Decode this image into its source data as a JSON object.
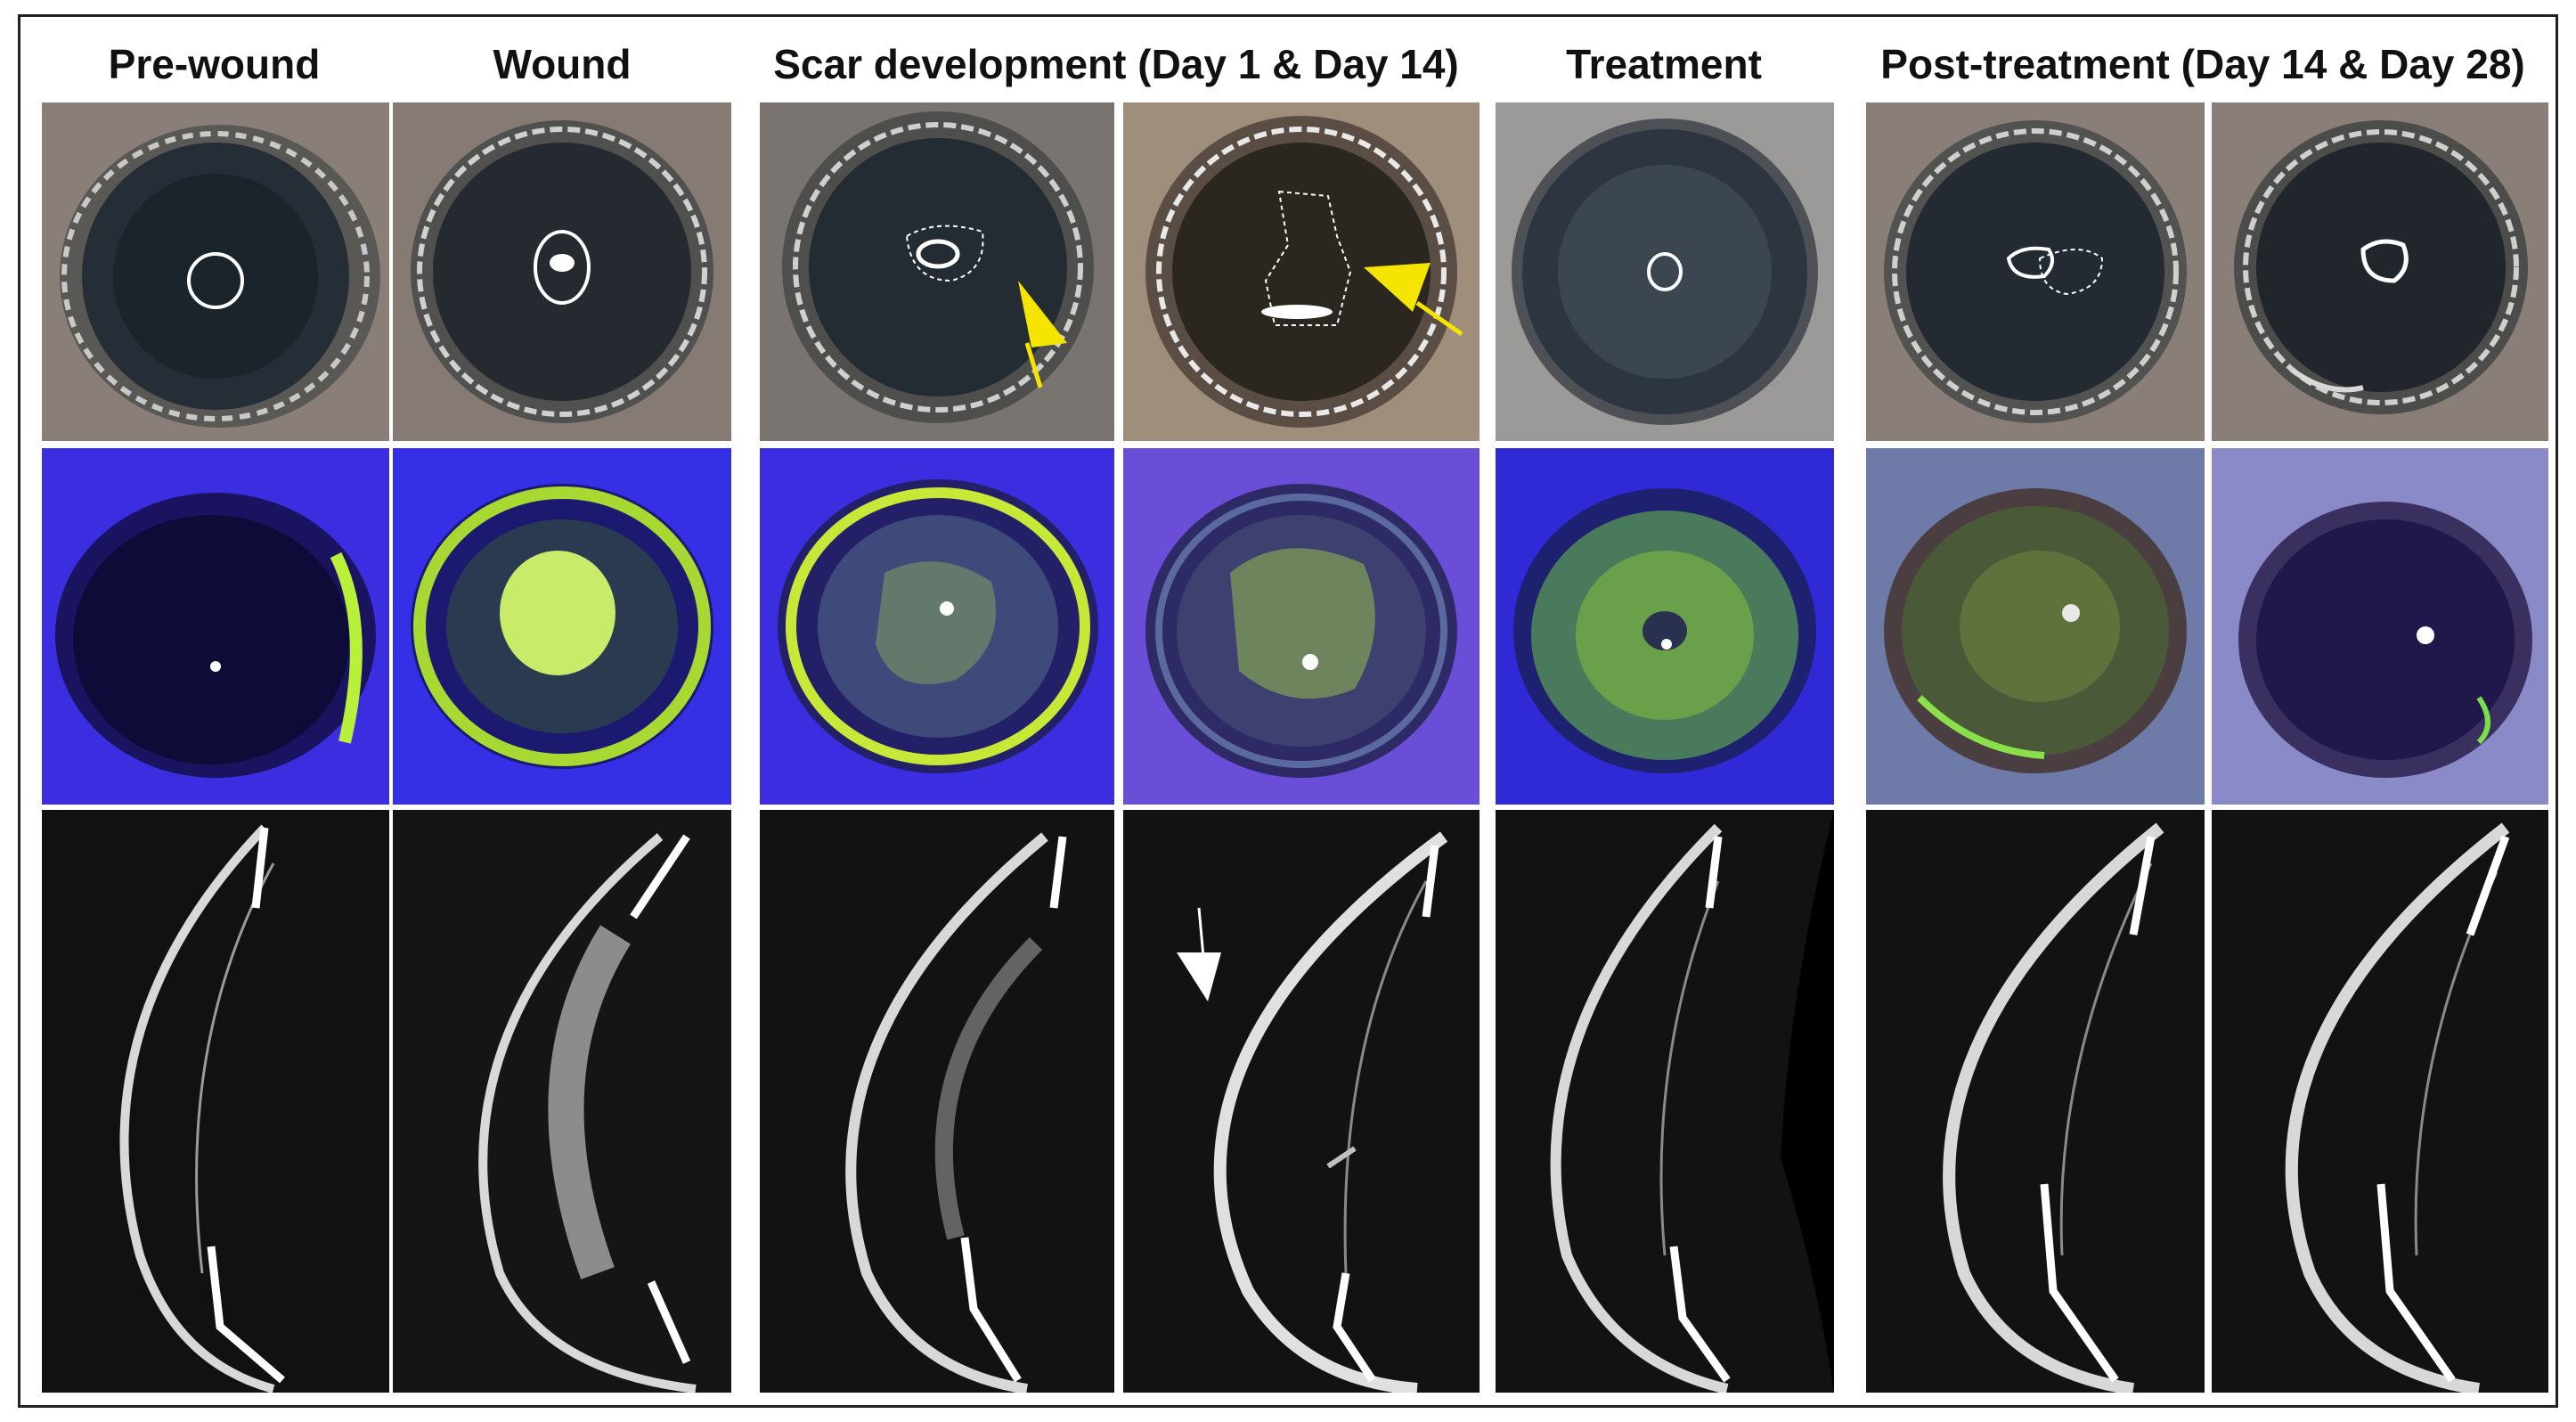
{
  "figure": {
    "headers": [
      {
        "id": "pre-wound",
        "label": "Pre-wound"
      },
      {
        "id": "wound",
        "label": "Wound"
      },
      {
        "id": "scar",
        "label": "Scar development (Day 1 & Day 14)"
      },
      {
        "id": "treatment",
        "label": "Treatment"
      },
      {
        "id": "post",
        "label": "Post-treatment (Day 14 & Day 28)"
      }
    ],
    "rows": [
      "slit-lamp",
      "fluorescein",
      "oct"
    ],
    "colors": {
      "arrow_yellow": "#f5e400",
      "arrow_white": "#ffffff",
      "fluorescein_bg": "#3a2ee0",
      "fluorescein_green": "#b8f03a",
      "oct_bg": "#111111"
    }
  }
}
